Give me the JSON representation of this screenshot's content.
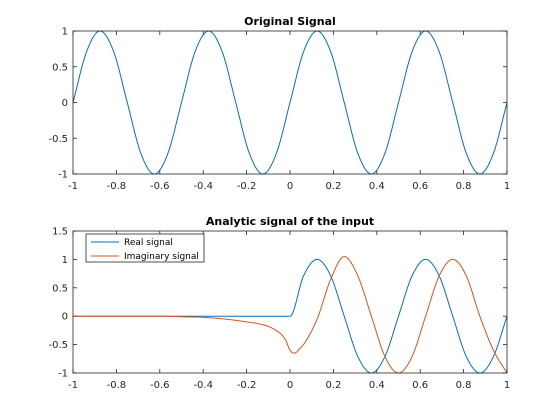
{
  "chart_data": [
    {
      "type": "line",
      "title": "Original Signal",
      "xlabel": "",
      "ylabel": "",
      "xlim": [
        -1,
        1
      ],
      "ylim": [
        -1,
        1
      ],
      "xticks": [
        -1,
        -0.8,
        -0.6,
        -0.4,
        -0.2,
        0,
        0.2,
        0.4,
        0.6,
        0.8,
        1
      ],
      "xtick_labels": [
        "-1",
        "-0.8",
        "-0.6",
        "-0.4",
        "-0.2",
        "0",
        "0.2",
        "0.4",
        "0.6",
        "0.8",
        "1"
      ],
      "yticks": [
        -1,
        -0.5,
        0,
        0.5,
        1
      ],
      "ytick_labels": [
        "-1",
        "-0.5",
        "0",
        "0.5",
        "1"
      ],
      "grid": false,
      "legend": null,
      "series": [
        {
          "color": "#0072BD",
          "x": [
            -1,
            -0.9375,
            -0.875,
            -0.8125,
            -0.75,
            -0.6875,
            -0.625,
            -0.5625,
            -0.5,
            -0.4375,
            -0.375,
            -0.3125,
            -0.25,
            -0.1875,
            -0.125,
            -0.0625,
            0,
            0.0625,
            0.125,
            0.1875,
            0.25,
            0.3125,
            0.375,
            0.4375,
            0.5,
            0.5625,
            0.625,
            0.6875,
            0.75,
            0.8125,
            0.875,
            0.9375,
            1
          ],
          "y": [
            0,
            0.71,
            1,
            0.71,
            0,
            -0.71,
            -1,
            -0.71,
            0,
            0.71,
            1,
            0.71,
            0,
            -0.71,
            -1,
            -0.71,
            0,
            0.71,
            1,
            0.71,
            0,
            -0.71,
            -1,
            -0.71,
            0,
            0.71,
            1,
            0.71,
            0,
            -0.71,
            -1,
            -0.71,
            0
          ]
        }
      ]
    },
    {
      "type": "line",
      "title": "Analytic signal of the input",
      "xlabel": "",
      "ylabel": "",
      "xlim": [
        -1,
        1
      ],
      "ylim": [
        -1,
        1.5
      ],
      "xticks": [
        -1,
        -0.8,
        -0.6,
        -0.4,
        -0.2,
        0,
        0.2,
        0.4,
        0.6,
        0.8,
        1
      ],
      "xtick_labels": [
        "-1",
        "-0.8",
        "-0.6",
        "-0.4",
        "-0.2",
        "0",
        "0.2",
        "0.4",
        "0.6",
        "0.8",
        "1"
      ],
      "yticks": [
        -1,
        -0.5,
        0,
        0.5,
        1,
        1.5
      ],
      "ytick_labels": [
        "-1",
        "-0.5",
        "0",
        "0.5",
        "1",
        "1.5"
      ],
      "grid": false,
      "legend": "top-left",
      "series": [
        {
          "name": "Real signal",
          "color": "#0072BD",
          "x": [
            -1,
            -0.5,
            0,
            0.0625,
            0.125,
            0.1875,
            0.25,
            0.3125,
            0.375,
            0.4375,
            0.5,
            0.5625,
            0.625,
            0.6875,
            0.75,
            0.8125,
            0.875,
            0.9375,
            1
          ],
          "y": [
            0,
            0,
            0,
            0.71,
            1,
            0.71,
            0,
            -0.71,
            -1,
            -0.71,
            0,
            0.71,
            1,
            0.71,
            0,
            -0.71,
            -1,
            -0.71,
            0
          ]
        },
        {
          "name": "Imaginary signal",
          "color": "#D95319",
          "x": [
            -1,
            -0.6,
            -0.5,
            -0.4,
            -0.3,
            -0.2,
            -0.15,
            -0.1,
            -0.06,
            -0.04,
            -0.02,
            0,
            0.02,
            0.05,
            0.0625,
            0.125,
            0.1875,
            0.25,
            0.3125,
            0.375,
            0.4375,
            0.5,
            0.5625,
            0.625,
            0.6875,
            0.75,
            0.8125,
            0.875,
            0.9375,
            1
          ],
          "y": [
            0,
            0,
            -0.01,
            -0.02,
            -0.05,
            -0.1,
            -0.13,
            -0.18,
            -0.26,
            -0.32,
            -0.42,
            -0.6,
            -0.65,
            -0.55,
            -0.5,
            -0.05,
            0.65,
            1.05,
            0.71,
            0,
            -0.71,
            -1,
            -0.71,
            0,
            0.71,
            1,
            0.71,
            0,
            -0.6,
            -1
          ]
        }
      ]
    }
  ]
}
